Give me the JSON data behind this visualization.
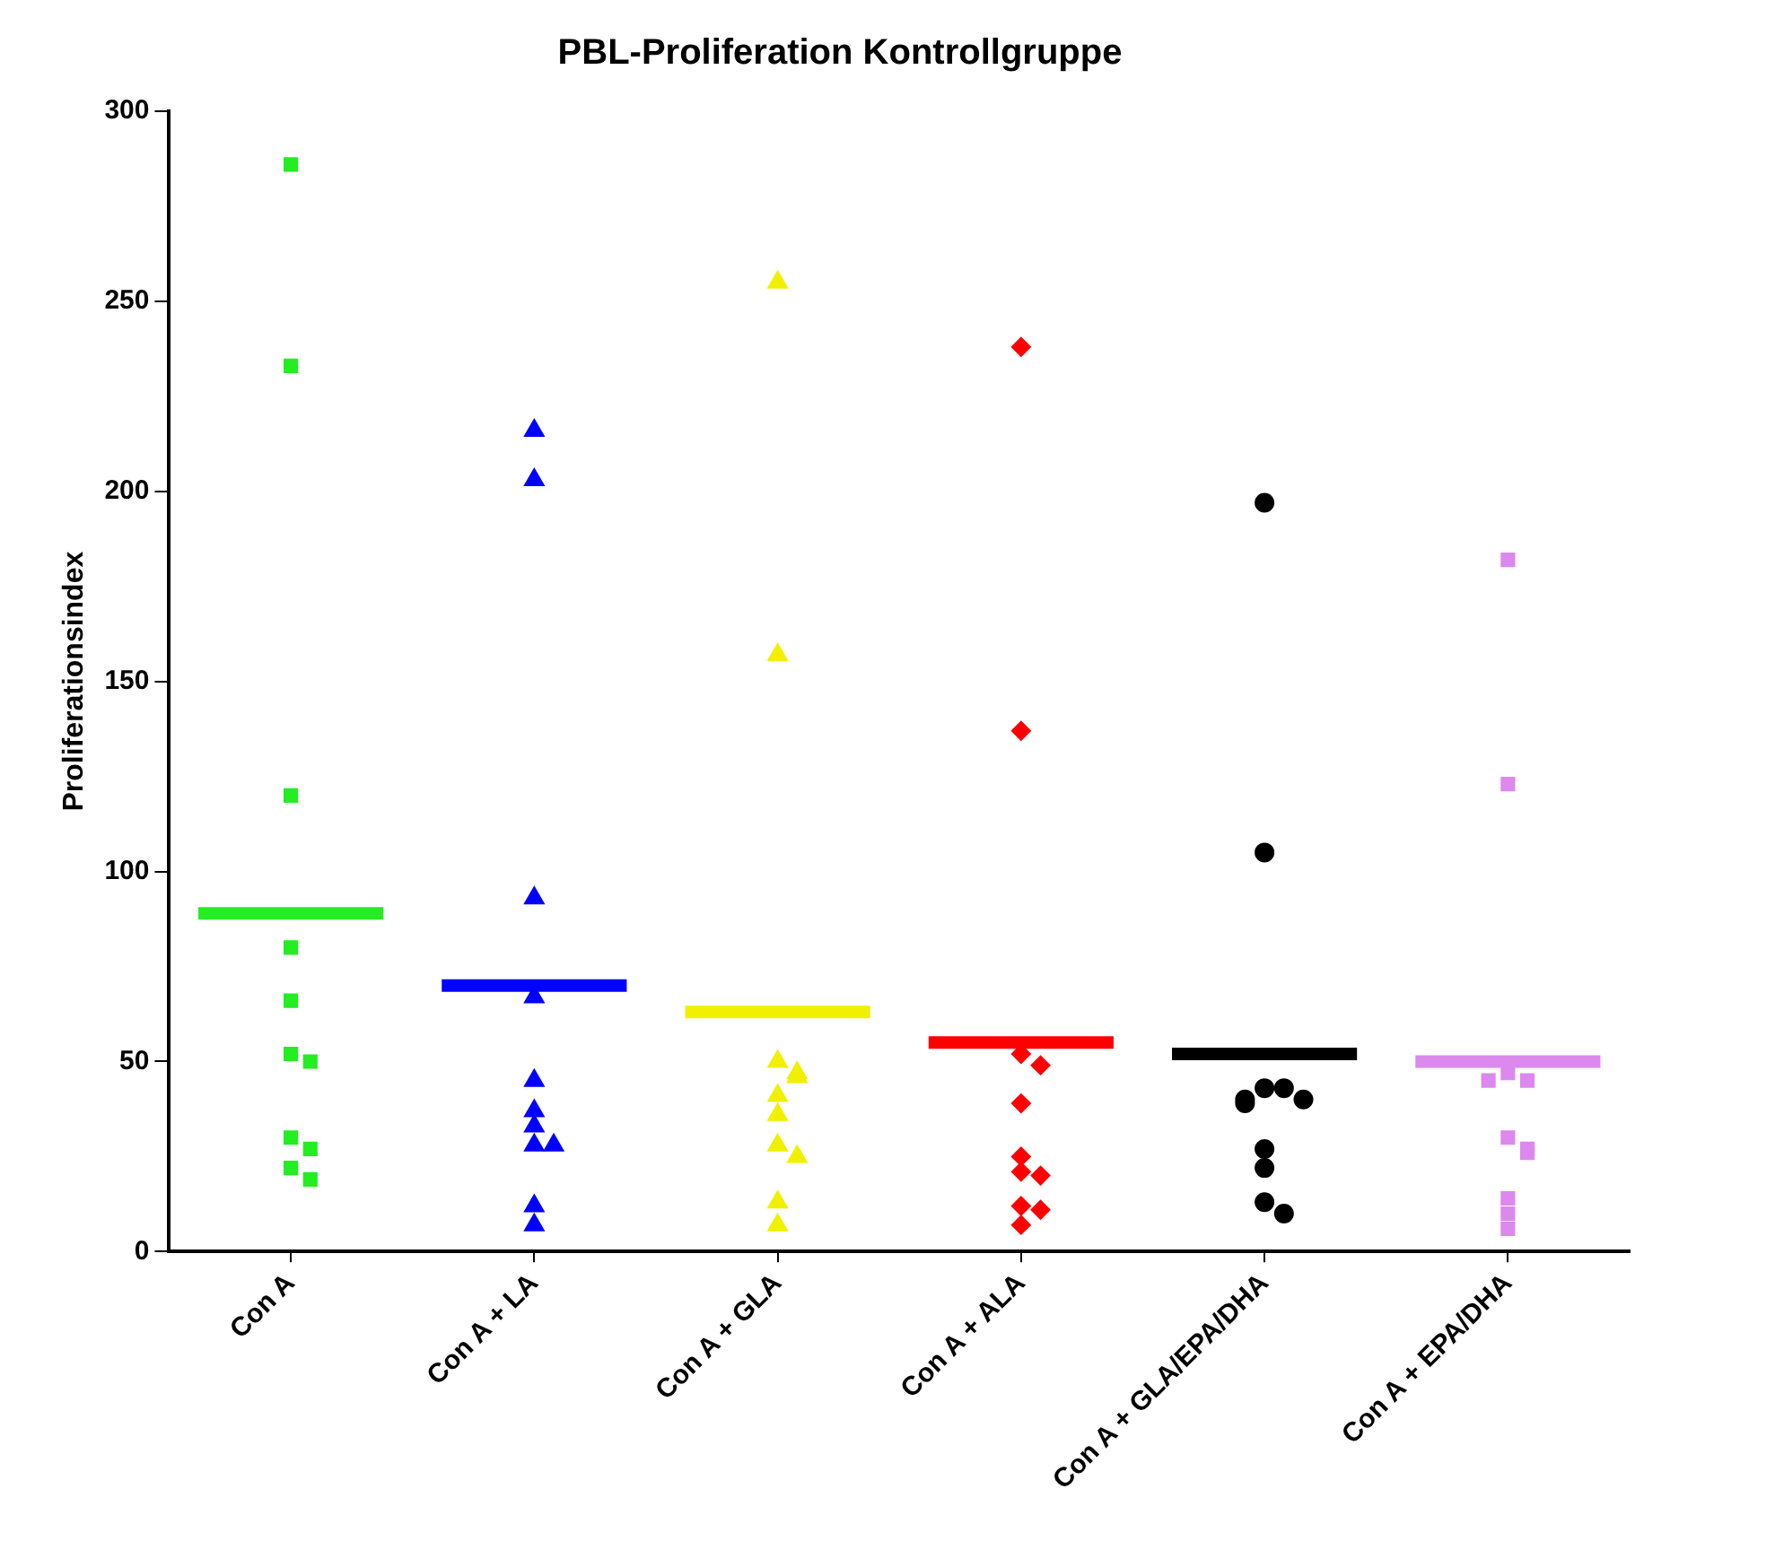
{
  "chart_data": {
    "type": "scatter",
    "title": "PBL-Proliferation Kontrollgruppe",
    "ylabel": "Proliferationsindex",
    "categories": [
      "Con A",
      "Con A + LA",
      "Con A + GLA",
      "Con A + ALA",
      "Con A + GLA/EPA/DHA",
      "Con A + EPA/DHA"
    ],
    "ylim": [
      0,
      300
    ],
    "yticks": [
      0,
      50,
      100,
      150,
      200,
      250,
      300
    ],
    "grid": false,
    "legend": false,
    "series": [
      {
        "marker": "square",
        "color": "#22ee22",
        "x": [
          "Con A",
          "Con A",
          "Con A",
          "Con A",
          "Con A",
          "Con A",
          "Con A",
          "Con A",
          "Con A",
          "Con A",
          "Con A"
        ],
        "values": [
          286,
          233,
          120,
          80,
          66,
          52,
          50,
          30,
          27,
          22,
          19
        ]
      },
      {
        "marker": "triangle",
        "color": "#0000ff",
        "x": [
          "Con A + LA",
          "Con A + LA",
          "Con A + LA",
          "Con A + LA",
          "Con A + LA",
          "Con A + LA",
          "Con A + LA",
          "Con A + LA",
          "Con A + LA",
          "Con A + LA",
          "Con A + LA"
        ],
        "values": [
          216,
          203,
          93,
          67,
          45,
          37,
          33,
          28,
          28,
          12,
          7
        ]
      },
      {
        "marker": "triangle",
        "color": "#f0f000",
        "x": [
          "Con A + GLA",
          "Con A + GLA",
          "Con A + GLA",
          "Con A + GLA",
          "Con A + GLA",
          "Con A + GLA",
          "Con A + GLA",
          "Con A + GLA",
          "Con A + GLA",
          "Con A + GLA",
          "Con A + GLA"
        ],
        "values": [
          255,
          157,
          50,
          47,
          46,
          41,
          36,
          28,
          25,
          13,
          7
        ]
      },
      {
        "marker": "diamond",
        "color": "#ff0000",
        "x": [
          "Con A + ALA",
          "Con A + ALA",
          "Con A + ALA",
          "Con A + ALA",
          "Con A + ALA",
          "Con A + ALA",
          "Con A + ALA",
          "Con A + ALA",
          "Con A + ALA",
          "Con A + ALA",
          "Con A + ALA"
        ],
        "values": [
          238,
          137,
          52,
          49,
          39,
          25,
          21,
          20,
          12,
          11,
          7
        ]
      },
      {
        "marker": "circle",
        "color": "#000000",
        "x": [
          "Con A + GLA/EPA/DHA",
          "Con A + GLA/EPA/DHA",
          "Con A + GLA/EPA/DHA",
          "Con A + GLA/EPA/DHA",
          "Con A + GLA/EPA/DHA",
          "Con A + GLA/EPA/DHA",
          "Con A + GLA/EPA/DHA",
          "Con A + GLA/EPA/DHA",
          "Con A + GLA/EPA/DHA",
          "Con A + GLA/EPA/DHA",
          "Con A + GLA/EPA/DHA"
        ],
        "values": [
          197,
          105,
          43,
          43,
          40,
          40,
          39,
          27,
          22,
          13,
          10
        ]
      },
      {
        "marker": "square",
        "color": "#dd88ee",
        "x": [
          "Con A + EPA/DHA",
          "Con A + EPA/DHA",
          "Con A + EPA/DHA",
          "Con A + EPA/DHA",
          "Con A + EPA/DHA",
          "Con A + EPA/DHA",
          "Con A + EPA/DHA",
          "Con A + EPA/DHA",
          "Con A + EPA/DHA",
          "Con A + EPA/DHA",
          "Con A + EPA/DHA"
        ],
        "values": [
          182,
          123,
          47,
          45,
          45,
          30,
          27,
          26,
          14,
          10,
          6
        ]
      }
    ],
    "ref_lines": [
      {
        "axis": "y",
        "value": 89,
        "color": "#22ee22"
      },
      {
        "axis": "y",
        "value": 70,
        "color": "#0000ff"
      },
      {
        "axis": "y",
        "value": 63,
        "color": "#f0f000"
      },
      {
        "axis": "y",
        "value": 55,
        "color": "#ff0000"
      },
      {
        "axis": "y",
        "value": 52,
        "color": "#000000"
      },
      {
        "axis": "y",
        "value": 50,
        "color": "#dd88ee"
      }
    ]
  }
}
